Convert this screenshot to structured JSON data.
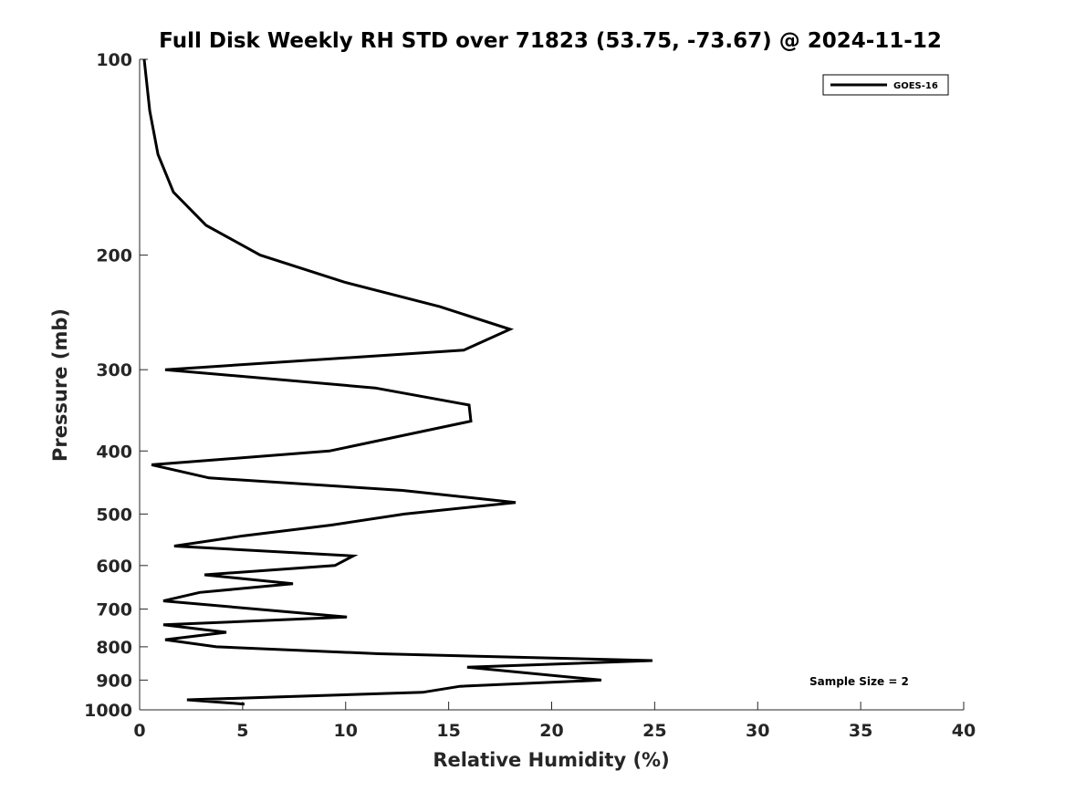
{
  "chart_data": {
    "type": "line",
    "title": "Full Disk Weekly RH STD over 71823 (53.75, -73.67) @ 2024-11-12",
    "xlabel": "Relative Humidity (%)",
    "ylabel": "Pressure (mb)",
    "xlim": [
      0,
      40
    ],
    "ylim": [
      100,
      1000
    ],
    "yscale": "log",
    "yreversed": true,
    "grid": false,
    "xticks": [
      0,
      5,
      10,
      15,
      20,
      25,
      30,
      35,
      40
    ],
    "yticks": [
      100,
      200,
      300,
      400,
      500,
      600,
      700,
      800,
      900,
      1000
    ],
    "legend": {
      "position": "top-right",
      "entries": [
        "GOES-16"
      ]
    },
    "annotation": "Sample Size = 2",
    "series": [
      {
        "name": "GOES-16",
        "color": "#000000",
        "pressure": [
          100,
          120,
          140,
          160,
          180,
          200,
          220,
          240,
          260,
          280,
          300,
          320,
          340,
          360,
          400,
          420,
          440,
          460,
          480,
          500,
          520,
          540,
          560,
          580,
          600,
          620,
          640,
          660,
          680,
          720,
          740,
          760,
          780,
          800,
          820,
          840,
          860,
          900,
          920,
          940,
          965,
          980
        ],
        "values": [
          0.22,
          0.49,
          0.89,
          1.64,
          3.23,
          5.85,
          9.92,
          14.57,
          17.98,
          15.73,
          1.24,
          11.43,
          15.99,
          16.08,
          9.21,
          0.58,
          3.37,
          12.76,
          18.25,
          12.85,
          9.3,
          5.05,
          1.68,
          10.37,
          9.48,
          3.15,
          7.44,
          2.92,
          1.15,
          10.06,
          1.15,
          4.21,
          1.24,
          3.72,
          11.61,
          24.89,
          15.9,
          22.41,
          15.55,
          13.73,
          2.3,
          5.09
        ]
      }
    ]
  }
}
